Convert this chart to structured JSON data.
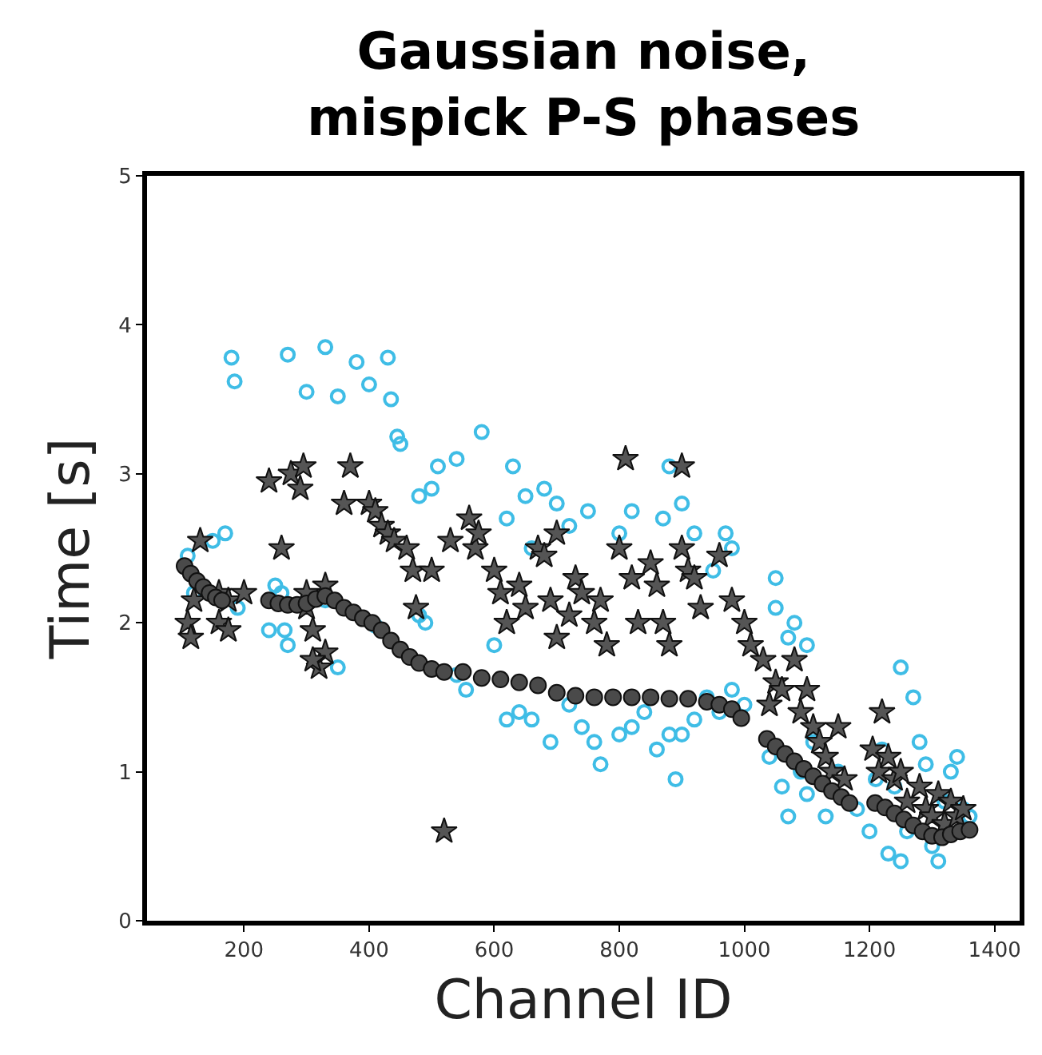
{
  "chart_data": {
    "type": "scatter",
    "title": "Gaussian noise,\nmispick P-S phases",
    "xlabel": "Channel ID",
    "ylabel": "Time [s]",
    "xlim": [
      45,
      1440
    ],
    "ylim": [
      0,
      5
    ],
    "xticks": [
      200,
      400,
      600,
      800,
      1000,
      1200,
      1400
    ],
    "yticks": [
      0,
      1,
      2,
      3,
      4,
      5
    ],
    "series": [
      {
        "color": "#3fbde6",
        "marker": "circle-open",
        "x": [
          180,
          185,
          270,
          300,
          330,
          350,
          380,
          400,
          430,
          435,
          445,
          450,
          540,
          480,
          500,
          510,
          580,
          110,
          150,
          170,
          250,
          260,
          120,
          190,
          265,
          270,
          240,
          350,
          330,
          410,
          480,
          490,
          540,
          555,
          600,
          700,
          660,
          620,
          630,
          650,
          680,
          720,
          750,
          800,
          820,
          870,
          900,
          880,
          920,
          950,
          980,
          970,
          1050,
          1050,
          1070,
          1100,
          1080,
          620,
          640,
          660,
          690,
          720,
          740,
          760,
          770,
          800,
          820,
          840,
          860,
          880,
          890,
          900,
          920,
          940,
          960,
          980,
          1000,
          1040,
          1060,
          1070,
          1090,
          1100,
          1110,
          1130,
          1150,
          1180,
          1200,
          1210,
          1230,
          1250,
          1260,
          1250,
          1270,
          1280,
          1300,
          1310,
          1320,
          1330,
          1340,
          1350,
          1360,
          1290,
          1220,
          1240
        ],
        "values": [
          3.78,
          3.62,
          3.8,
          3.55,
          3.85,
          3.52,
          3.75,
          3.6,
          3.78,
          3.5,
          3.25,
          3.2,
          3.1,
          2.85,
          2.9,
          3.05,
          3.28,
          2.45,
          2.55,
          2.6,
          2.25,
          2.2,
          2.2,
          2.1,
          1.95,
          1.85,
          1.95,
          1.7,
          2.15,
          1.98,
          2.05,
          2.0,
          1.65,
          1.55,
          1.85,
          2.8,
          2.5,
          2.7,
          3.05,
          2.85,
          2.9,
          2.65,
          2.75,
          2.6,
          2.75,
          2.7,
          2.8,
          3.05,
          2.6,
          2.35,
          2.5,
          2.6,
          2.3,
          2.1,
          1.9,
          1.85,
          2.0,
          1.35,
          1.4,
          1.35,
          1.2,
          1.45,
          1.3,
          1.2,
          1.05,
          1.25,
          1.3,
          1.4,
          1.15,
          1.25,
          0.95,
          1.25,
          1.35,
          1.5,
          1.4,
          1.55,
          1.45,
          1.1,
          0.9,
          0.7,
          1.0,
          0.85,
          1.2,
          0.7,
          1.0,
          0.75,
          0.6,
          0.95,
          0.45,
          0.4,
          0.6,
          1.7,
          1.5,
          1.2,
          0.5,
          0.4,
          0.8,
          1.0,
          1.1,
          0.75,
          0.7,
          1.05,
          1.15,
          0.9
        ]
      },
      {
        "color": "#555555",
        "marker": "star",
        "x": [
          110,
          115,
          120,
          130,
          160,
          160,
          175,
          175,
          240,
          260,
          275,
          290,
          295,
          300,
          310,
          320,
          330,
          360,
          330,
          310,
          370,
          400,
          410,
          420,
          430,
          440,
          460,
          470,
          475,
          500,
          520,
          530,
          560,
          570,
          575,
          600,
          610,
          620,
          640,
          650,
          670,
          680,
          700,
          690,
          700,
          720,
          730,
          740,
          760,
          770,
          780,
          800,
          810,
          820,
          830,
          850,
          860,
          870,
          880,
          900,
          900,
          910,
          920,
          930,
          960,
          980,
          1000,
          1010,
          1030,
          1040,
          1050,
          1060,
          1080,
          1090,
          1100,
          1110,
          1120,
          1130,
          1140,
          1150,
          1160,
          1205,
          1215,
          1220,
          1230,
          1240,
          1250,
          1260,
          1280,
          1290,
          1300,
          1310,
          1320,
          1330,
          1340,
          1350,
          300,
          200
        ],
        "values": [
          2.0,
          1.9,
          2.15,
          2.55,
          2.2,
          2.0,
          2.15,
          1.95,
          2.95,
          2.5,
          3.0,
          2.9,
          3.05,
          2.1,
          1.95,
          1.7,
          2.25,
          2.8,
          1.8,
          1.75,
          3.05,
          2.8,
          2.75,
          2.65,
          2.6,
          2.55,
          2.5,
          2.35,
          2.1,
          2.35,
          0.6,
          2.55,
          2.7,
          2.5,
          2.6,
          2.35,
          2.2,
          2.0,
          2.25,
          2.1,
          2.5,
          2.45,
          2.6,
          2.15,
          1.9,
          2.05,
          2.3,
          2.2,
          2.0,
          2.15,
          1.85,
          2.5,
          3.1,
          2.3,
          2.0,
          2.4,
          2.25,
          2.0,
          1.85,
          3.05,
          2.5,
          2.35,
          2.3,
          2.1,
          2.45,
          2.15,
          2.0,
          1.85,
          1.75,
          1.45,
          1.6,
          1.55,
          1.75,
          1.4,
          1.55,
          1.3,
          1.2,
          1.1,
          1.0,
          1.3,
          0.95,
          1.15,
          1.0,
          1.4,
          1.1,
          0.95,
          1.0,
          0.8,
          0.9,
          0.75,
          0.7,
          0.85,
          0.65,
          0.8,
          0.7,
          0.75,
          2.2,
          2.2
        ]
      },
      {
        "color": "#4a4a4a",
        "marker": "circle",
        "x": [
          105,
          115,
          125,
          135,
          145,
          155,
          165,
          240,
          255,
          270,
          285,
          300,
          315,
          330,
          345,
          360,
          375,
          390,
          405,
          420,
          435,
          450,
          465,
          480,
          500,
          520,
          550,
          580,
          610,
          640,
          670,
          700,
          730,
          760,
          790,
          820,
          850,
          880,
          910,
          940,
          960,
          980,
          995,
          1036,
          1050,
          1065,
          1080,
          1095,
          1110,
          1125,
          1140,
          1155,
          1168,
          1209,
          1225,
          1240,
          1255,
          1270,
          1285,
          1300,
          1316,
          1330,
          1345,
          1360
        ],
        "values": [
          2.38,
          2.33,
          2.28,
          2.24,
          2.2,
          2.17,
          2.15,
          2.15,
          2.13,
          2.12,
          2.12,
          2.13,
          2.16,
          2.18,
          2.15,
          2.1,
          2.07,
          2.03,
          2.0,
          1.95,
          1.88,
          1.82,
          1.77,
          1.73,
          1.69,
          1.67,
          1.67,
          1.63,
          1.62,
          1.6,
          1.58,
          1.53,
          1.51,
          1.5,
          1.5,
          1.5,
          1.5,
          1.49,
          1.49,
          1.47,
          1.45,
          1.42,
          1.36,
          1.22,
          1.17,
          1.12,
          1.07,
          1.02,
          0.97,
          0.92,
          0.87,
          0.83,
          0.79,
          0.79,
          0.76,
          0.72,
          0.68,
          0.64,
          0.6,
          0.57,
          0.56,
          0.58,
          0.6,
          0.61
        ]
      }
    ]
  }
}
